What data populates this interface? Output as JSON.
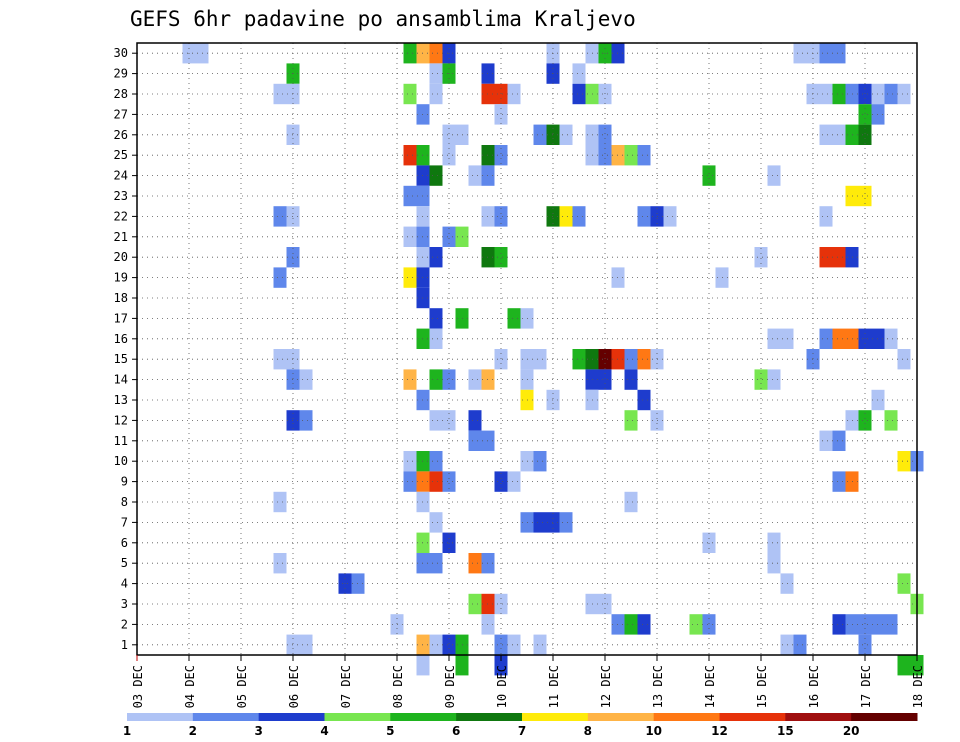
{
  "chart_data": {
    "type": "heatmap",
    "title": "GEFS 6hr padavine po ansamblima Kraljevo",
    "xlabel": "",
    "ylabel": "",
    "x_ticks": [
      "03 DEC",
      "04 DEC",
      "05 DEC",
      "06 DEC",
      "07 DEC",
      "08 DEC",
      "09 DEC",
      "10 DEC",
      "11 DEC",
      "12 DEC",
      "13 DEC",
      "14 DEC",
      "15 DEC",
      "16 DEC",
      "17 DEC",
      "18 DEC"
    ],
    "x_range": [
      0,
      60
    ],
    "y_ticks": [
      1,
      2,
      3,
      4,
      5,
      6,
      7,
      8,
      9,
      10,
      11,
      12,
      13,
      14,
      15,
      16,
      17,
      18,
      19,
      20,
      21,
      22,
      23,
      24,
      25,
      26,
      27,
      28,
      29,
      30
    ],
    "y_range": [
      0.5,
      30.5
    ],
    "grid": true,
    "colorbar_labels": [
      "1",
      "2",
      "3",
      "4",
      "5",
      "6",
      "7",
      "8",
      "10",
      "12",
      "15",
      "20"
    ],
    "colorbar_colors": [
      "#afc3f5",
      "#5f87eb",
      "#1e3ccd",
      "#78e650",
      "#1eb41e",
      "#0f780f",
      "#ffeb0a",
      "#ffb446",
      "#ff7814",
      "#e6320a",
      "#a00f0f",
      "#640000"
    ],
    "cells": [
      [
        30,
        4,
        0
      ],
      [
        30,
        5,
        0
      ],
      [
        30,
        21,
        4
      ],
      [
        30,
        22,
        7
      ],
      [
        30,
        23,
        8
      ],
      [
        30,
        24,
        2
      ],
      [
        30,
        32,
        0
      ],
      [
        30,
        35,
        0
      ],
      [
        30,
        36,
        4
      ],
      [
        30,
        37,
        2
      ],
      [
        30,
        51,
        0
      ],
      [
        30,
        52,
        0
      ],
      [
        30,
        53,
        1
      ],
      [
        30,
        54,
        1
      ],
      [
        29,
        12,
        4
      ],
      [
        29,
        23,
        0
      ],
      [
        29,
        24,
        4
      ],
      [
        29,
        27,
        2
      ],
      [
        29,
        32,
        2
      ],
      [
        29,
        34,
        0
      ],
      [
        28,
        11,
        0
      ],
      [
        28,
        12,
        0
      ],
      [
        28,
        21,
        3
      ],
      [
        28,
        23,
        0
      ],
      [
        28,
        27,
        9
      ],
      [
        28,
        28,
        9
      ],
      [
        28,
        29,
        0
      ],
      [
        28,
        34,
        2
      ],
      [
        28,
        35,
        3
      ],
      [
        28,
        36,
        0
      ],
      [
        28,
        52,
        0
      ],
      [
        28,
        53,
        0
      ],
      [
        28,
        54,
        4
      ],
      [
        28,
        55,
        1
      ],
      [
        28,
        56,
        2
      ],
      [
        28,
        57,
        0
      ],
      [
        28,
        58,
        1
      ],
      [
        28,
        59,
        0
      ],
      [
        27,
        22,
        1
      ],
      [
        27,
        28,
        0
      ],
      [
        27,
        56,
        4
      ],
      [
        27,
        57,
        1
      ],
      [
        26,
        12,
        0
      ],
      [
        26,
        24,
        0
      ],
      [
        26,
        25,
        0
      ],
      [
        26,
        31,
        1
      ],
      [
        26,
        32,
        5
      ],
      [
        26,
        33,
        0
      ],
      [
        26,
        35,
        0
      ],
      [
        26,
        36,
        1
      ],
      [
        26,
        53,
        0
      ],
      [
        26,
        54,
        0
      ],
      [
        26,
        55,
        4
      ],
      [
        26,
        56,
        5
      ],
      [
        25,
        21,
        9
      ],
      [
        25,
        22,
        4
      ],
      [
        25,
        24,
        0
      ],
      [
        25,
        27,
        5
      ],
      [
        25,
        28,
        1
      ],
      [
        25,
        35,
        0
      ],
      [
        25,
        36,
        1
      ],
      [
        25,
        37,
        7
      ],
      [
        25,
        38,
        3
      ],
      [
        25,
        39,
        1
      ],
      [
        24,
        22,
        2
      ],
      [
        24,
        23,
        5
      ],
      [
        24,
        26,
        0
      ],
      [
        24,
        27,
        1
      ],
      [
        24,
        44,
        4
      ],
      [
        24,
        49,
        0
      ],
      [
        23,
        21,
        1
      ],
      [
        23,
        22,
        1
      ],
      [
        23,
        55,
        6
      ],
      [
        23,
        56,
        6
      ],
      [
        22,
        11,
        1
      ],
      [
        22,
        12,
        0
      ],
      [
        22,
        22,
        0
      ],
      [
        22,
        27,
        0
      ],
      [
        22,
        28,
        1
      ],
      [
        22,
        32,
        5
      ],
      [
        22,
        33,
        6
      ],
      [
        22,
        34,
        1
      ],
      [
        22,
        39,
        1
      ],
      [
        22,
        40,
        2
      ],
      [
        22,
        41,
        0
      ],
      [
        22,
        53,
        0
      ],
      [
        21,
        21,
        0
      ],
      [
        21,
        22,
        1
      ],
      [
        21,
        24,
        1
      ],
      [
        21,
        25,
        3
      ],
      [
        20,
        12,
        1
      ],
      [
        20,
        22,
        0
      ],
      [
        20,
        23,
        2
      ],
      [
        20,
        27,
        5
      ],
      [
        20,
        28,
        4
      ],
      [
        20,
        48,
        0
      ],
      [
        20,
        53,
        9
      ],
      [
        20,
        54,
        9
      ],
      [
        20,
        55,
        2
      ],
      [
        19,
        11,
        1
      ],
      [
        19,
        21,
        6
      ],
      [
        19,
        22,
        2
      ],
      [
        19,
        37,
        0
      ],
      [
        19,
        45,
        0
      ],
      [
        18,
        22,
        2
      ],
      [
        17,
        23,
        2
      ],
      [
        17,
        25,
        4
      ],
      [
        17,
        29,
        4
      ],
      [
        17,
        30,
        0
      ],
      [
        16,
        22,
        4
      ],
      [
        16,
        23,
        0
      ],
      [
        16,
        49,
        0
      ],
      [
        16,
        50,
        0
      ],
      [
        16,
        53,
        1
      ],
      [
        16,
        54,
        8
      ],
      [
        16,
        55,
        8
      ],
      [
        16,
        56,
        2
      ],
      [
        16,
        57,
        2
      ],
      [
        16,
        58,
        0
      ],
      [
        15,
        11,
        0
      ],
      [
        15,
        12,
        0
      ],
      [
        15,
        28,
        0
      ],
      [
        15,
        30,
        0
      ],
      [
        15,
        31,
        0
      ],
      [
        15,
        34,
        4
      ],
      [
        15,
        35,
        5
      ],
      [
        15,
        36,
        11
      ],
      [
        15,
        37,
        9
      ],
      [
        15,
        38,
        1
      ],
      [
        15,
        39,
        8
      ],
      [
        15,
        40,
        0
      ],
      [
        15,
        52,
        1
      ],
      [
        15,
        59,
        0
      ],
      [
        14,
        12,
        1
      ],
      [
        14,
        13,
        0
      ],
      [
        14,
        21,
        7
      ],
      [
        14,
        23,
        4
      ],
      [
        14,
        24,
        1
      ],
      [
        14,
        26,
        0
      ],
      [
        14,
        27,
        7
      ],
      [
        14,
        30,
        0
      ],
      [
        14,
        35,
        2
      ],
      [
        14,
        36,
        2
      ],
      [
        14,
        38,
        2
      ],
      [
        14,
        48,
        3
      ],
      [
        14,
        49,
        0
      ],
      [
        13,
        22,
        1
      ],
      [
        13,
        30,
        6
      ],
      [
        13,
        32,
        0
      ],
      [
        13,
        35,
        0
      ],
      [
        13,
        39,
        2
      ],
      [
        13,
        57,
        0
      ],
      [
        12,
        12,
        2
      ],
      [
        12,
        13,
        1
      ],
      [
        12,
        23,
        0
      ],
      [
        12,
        24,
        0
      ],
      [
        12,
        26,
        2
      ],
      [
        12,
        38,
        3
      ],
      [
        12,
        40,
        0
      ],
      [
        12,
        55,
        0
      ],
      [
        12,
        56,
        4
      ],
      [
        12,
        58,
        3
      ],
      [
        11,
        26,
        1
      ],
      [
        11,
        27,
        1
      ],
      [
        11,
        53,
        0
      ],
      [
        11,
        54,
        1
      ],
      [
        10,
        21,
        0
      ],
      [
        10,
        22,
        4
      ],
      [
        10,
        23,
        1
      ],
      [
        10,
        30,
        0
      ],
      [
        10,
        31,
        1
      ],
      [
        10,
        59,
        6
      ],
      [
        10,
        60,
        1
      ],
      [
        9,
        21,
        1
      ],
      [
        9,
        22,
        8
      ],
      [
        9,
        23,
        9
      ],
      [
        9,
        24,
        1
      ],
      [
        9,
        28,
        2
      ],
      [
        9,
        29,
        0
      ],
      [
        9,
        54,
        1
      ],
      [
        9,
        55,
        8
      ],
      [
        8,
        11,
        0
      ],
      [
        8,
        22,
        0
      ],
      [
        8,
        38,
        0
      ],
      [
        7,
        23,
        0
      ],
      [
        7,
        30,
        1
      ],
      [
        7,
        31,
        2
      ],
      [
        7,
        32,
        2
      ],
      [
        7,
        33,
        1
      ],
      [
        6,
        22,
        3
      ],
      [
        6,
        24,
        2
      ],
      [
        6,
        44,
        0
      ],
      [
        6,
        49,
        0
      ],
      [
        5,
        11,
        0
      ],
      [
        5,
        22,
        1
      ],
      [
        5,
        23,
        1
      ],
      [
        5,
        26,
        8
      ],
      [
        5,
        27,
        1
      ],
      [
        5,
        49,
        0
      ],
      [
        4,
        16,
        2
      ],
      [
        4,
        17,
        1
      ],
      [
        4,
        50,
        0
      ],
      [
        4,
        59,
        3
      ],
      [
        3,
        26,
        3
      ],
      [
        3,
        27,
        9
      ],
      [
        3,
        28,
        0
      ],
      [
        3,
        35,
        0
      ],
      [
        3,
        36,
        0
      ],
      [
        3,
        60,
        3
      ],
      [
        2,
        20,
        0
      ],
      [
        2,
        27,
        0
      ],
      [
        2,
        37,
        1
      ],
      [
        2,
        38,
        4
      ],
      [
        2,
        39,
        2
      ],
      [
        2,
        43,
        3
      ],
      [
        2,
        44,
        1
      ],
      [
        2,
        54,
        2
      ],
      [
        2,
        55,
        1
      ],
      [
        2,
        56,
        1
      ],
      [
        2,
        57,
        1
      ],
      [
        2,
        58,
        1
      ],
      [
        1,
        12,
        0
      ],
      [
        1,
        13,
        0
      ],
      [
        1,
        22,
        7
      ],
      [
        1,
        23,
        0
      ],
      [
        1,
        24,
        2
      ],
      [
        1,
        25,
        4
      ],
      [
        1,
        28,
        1
      ],
      [
        1,
        29,
        0
      ],
      [
        1,
        31,
        0
      ],
      [
        1,
        50,
        0
      ],
      [
        1,
        51,
        1
      ],
      [
        1,
        56,
        1
      ],
      [
        0,
        22,
        0
      ],
      [
        0,
        25,
        4
      ],
      [
        0,
        28,
        2
      ],
      [
        0,
        59,
        4
      ],
      [
        0,
        60,
        4
      ]
    ]
  }
}
